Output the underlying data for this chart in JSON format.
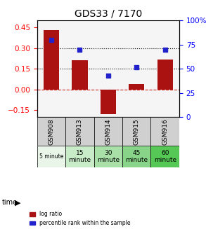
{
  "title": "GDS33 / 7170",
  "samples": [
    "GSM908",
    "GSM913",
    "GSM914",
    "GSM915",
    "GSM916"
  ],
  "time_labels": [
    "5 minute",
    "15\nminute",
    "30\nminute",
    "45\nminute",
    "60\nminute"
  ],
  "log_ratio": [
    0.43,
    0.21,
    -0.18,
    0.04,
    0.22
  ],
  "percentile_rank": [
    80,
    70,
    43,
    52,
    70
  ],
  "bar_color": "#aa1111",
  "dot_color": "#2222cc",
  "ylim_left": [
    -0.2,
    0.5
  ],
  "ylim_right": [
    0,
    100
  ],
  "yticks_left": [
    -0.15,
    0,
    0.15,
    0.3,
    0.45
  ],
  "yticks_right": [
    0,
    25,
    50,
    75,
    100
  ],
  "hlines": [
    0.15,
    0.3
  ],
  "time_colors": [
    "#e8f5e8",
    "#c8ecc8",
    "#a8e0a8",
    "#88d488",
    "#55c855"
  ],
  "cell_color_gsm": "#d0d0d0",
  "background_color": "#f5f5f5"
}
